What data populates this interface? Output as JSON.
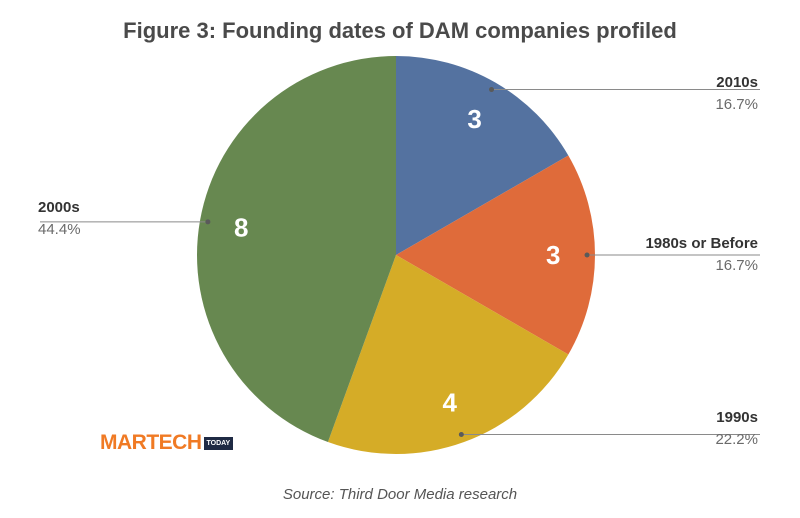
{
  "chart_data": {
    "type": "pie",
    "title": "Figure 3: Founding dates of DAM companies profiled",
    "start_angle_deg": 0,
    "direction": "clockwise",
    "slices": [
      {
        "label": "2010s",
        "value": 3,
        "percent": "16.7%",
        "color": "#5472a0"
      },
      {
        "label": "1980s or Before",
        "value": 3,
        "percent": "16.7%",
        "color": "#df6b3a"
      },
      {
        "label": "1990s",
        "value": 4,
        "percent": "22.2%",
        "color": "#d5ac27"
      },
      {
        "label": "2000s",
        "value": 8,
        "percent": "44.4%",
        "color": "#678850"
      }
    ],
    "legend": "none",
    "source": "Source: Third Door Media research"
  },
  "logo": {
    "main": "MARTECH",
    "tag": "TODAY"
  }
}
